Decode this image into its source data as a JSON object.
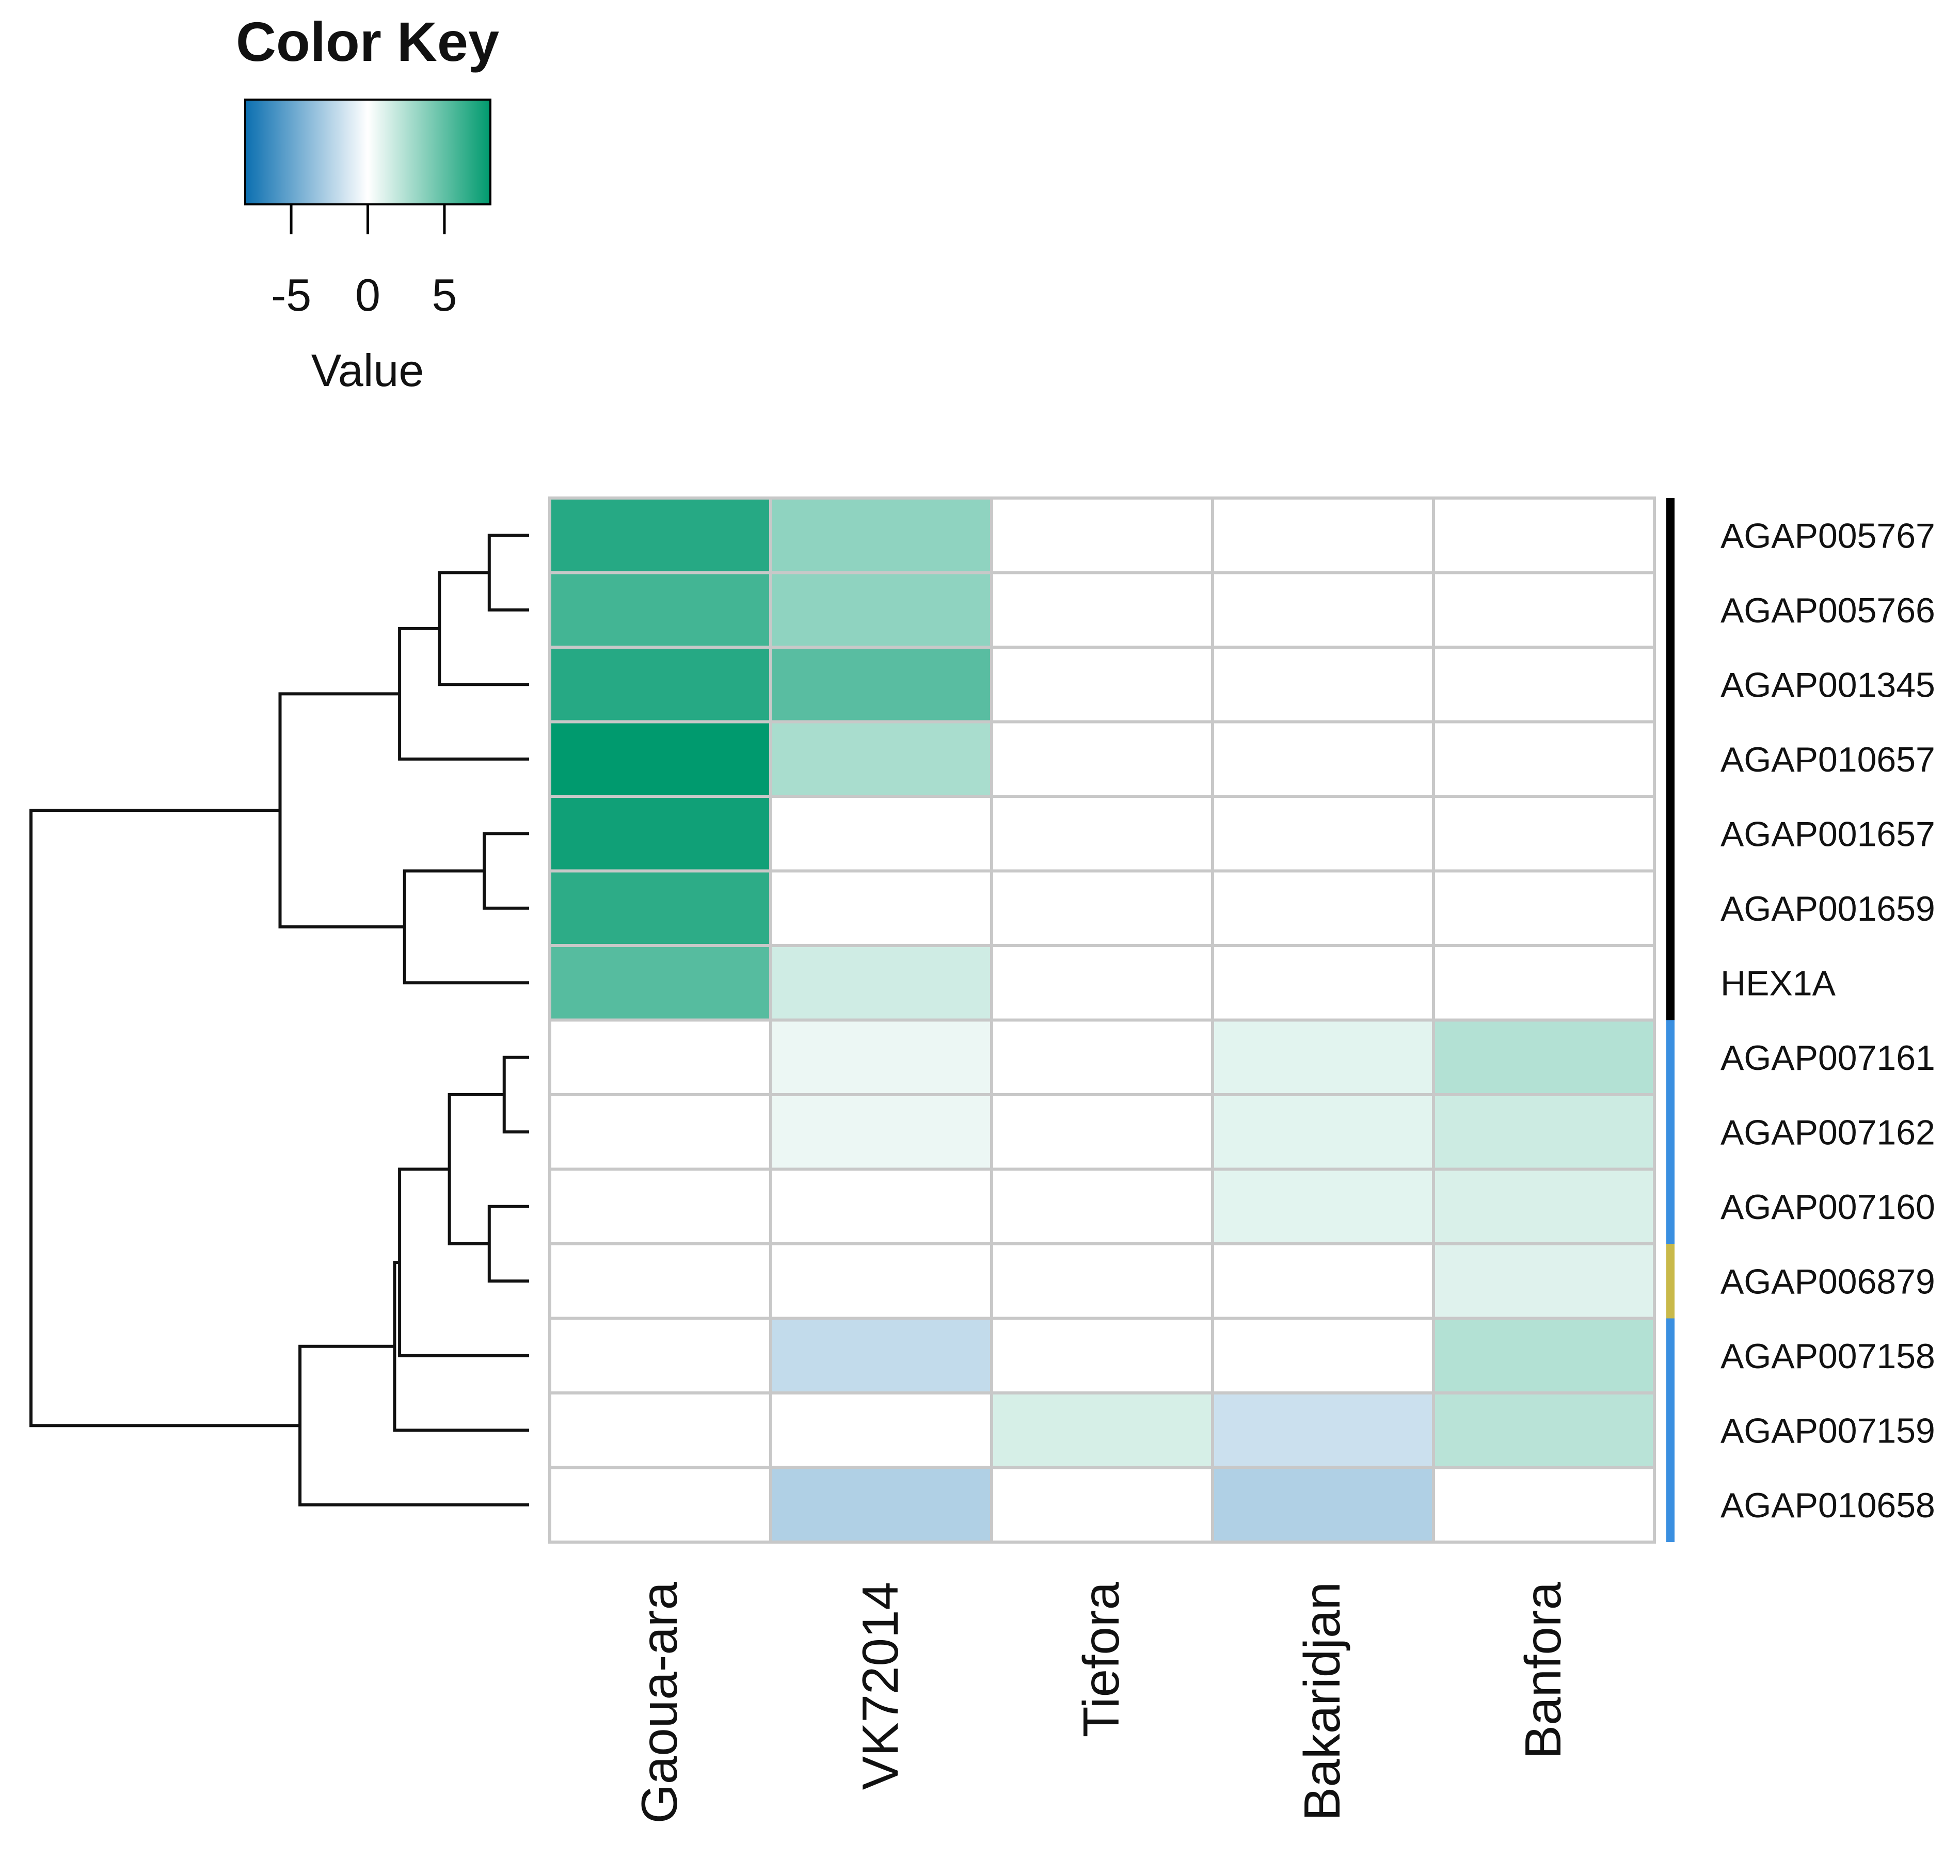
{
  "chart_data": {
    "type": "heatmap",
    "title": "",
    "color_key": {
      "title": "Color Key",
      "label": "Value",
      "range": [
        -8,
        8
      ],
      "ticks": [
        -5,
        0,
        5
      ],
      "tick_labels": [
        "-5",
        "0",
        "5"
      ],
      "colors": {
        "low": "#0b6fb0",
        "mid": "#ffffff",
        "high": "#009a6e"
      }
    },
    "columns": [
      "Gaoua-ara",
      "VK72014",
      "Tiefora",
      "Bakaridjan",
      "Banfora"
    ],
    "rows": [
      "AGAP005767",
      "AGAP005766",
      "AGAP001345",
      "AGAP010657",
      "AGAP001657",
      "AGAP001659",
      "HEX1A",
      "AGAP007161",
      "AGAP007162",
      "AGAP007160",
      "AGAP006879",
      "AGAP007158",
      "AGAP007159",
      "AGAP010658"
    ],
    "values": [
      [
        6.8,
        3.5,
        0,
        0,
        0
      ],
      [
        5.9,
        3.5,
        0,
        0,
        0
      ],
      [
        6.8,
        5.2,
        0,
        0,
        0
      ],
      [
        8.0,
        2.7,
        0,
        0,
        0
      ],
      [
        7.5,
        0,
        0,
        0,
        0
      ],
      [
        6.6,
        0,
        0,
        0,
        0
      ],
      [
        5.3,
        1.5,
        0,
        0,
        0
      ],
      [
        0,
        0.6,
        0,
        0.9,
        2.4
      ],
      [
        0,
        0.6,
        0,
        0.9,
        1.6
      ],
      [
        0,
        0,
        0,
        0.9,
        1.2
      ],
      [
        0,
        0,
        0,
        0,
        1.0
      ],
      [
        0,
        -2.0,
        0,
        0,
        2.4
      ],
      [
        0,
        0,
        1.3,
        -1.7,
        2.2
      ],
      [
        0,
        -2.6,
        0,
        -2.6,
        0
      ]
    ],
    "row_groups": [
      {
        "color": "#000000",
        "rows": [
          "AGAP005767",
          "AGAP005766",
          "AGAP001345",
          "AGAP010657",
          "AGAP001657",
          "AGAP001659",
          "HEX1A"
        ]
      },
      {
        "color": "#3a8fe0",
        "rows": [
          "AGAP007161",
          "AGAP007162",
          "AGAP007160"
        ]
      },
      {
        "color": "#c9b94a",
        "rows": [
          "AGAP006879"
        ]
      },
      {
        "color": "#3a8fe0",
        "rows": [
          "AGAP007158",
          "AGAP007159",
          "AGAP010658"
        ]
      }
    ],
    "row_dendrogram": [
      {
        "a": "AGAP005767",
        "b": "AGAP005766",
        "h": 0.08
      },
      {
        "a": 0,
        "b": "AGAP001345",
        "h": 0.18
      },
      {
        "a": 1,
        "b": "AGAP010657",
        "h": 0.26
      },
      {
        "a": "AGAP001657",
        "b": "AGAP001659",
        "h": 0.09
      },
      {
        "a": 3,
        "b": "HEX1A",
        "h": 0.25
      },
      {
        "a": 2,
        "b": 4,
        "h": 0.5
      },
      {
        "a": "AGAP007161",
        "b": "AGAP007162",
        "h": 0.05
      },
      {
        "a": "AGAP007160",
        "b": "AGAP006879",
        "h": 0.08
      },
      {
        "a": 6,
        "b": 7,
        "h": 0.16
      },
      {
        "a": 8,
        "b": "AGAP007158",
        "h": 0.26
      },
      {
        "a": 9,
        "b": "AGAP007159",
        "h": 0.27
      },
      {
        "a": 10,
        "b": "AGAP010658",
        "h": 0.46
      },
      {
        "a": 5,
        "b": 11,
        "h": 1.0
      }
    ]
  }
}
